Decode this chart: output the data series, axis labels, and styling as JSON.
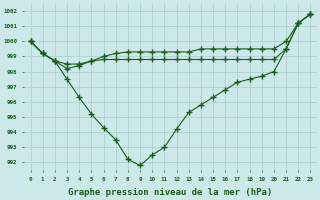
{
  "title": "",
  "xlabel": "Graphe pression niveau de la mer (hPa)",
  "ylim": [
    991.5,
    1002.5
  ],
  "xlim": [
    -0.5,
    23.5
  ],
  "yticks": [
    992,
    993,
    994,
    995,
    996,
    997,
    998,
    999,
    1000,
    1001,
    1002
  ],
  "xticks": [
    0,
    1,
    2,
    3,
    4,
    5,
    6,
    7,
    8,
    9,
    10,
    11,
    12,
    13,
    14,
    15,
    16,
    17,
    18,
    19,
    20,
    21,
    22,
    23
  ],
  "bg_color": "#cce8e8",
  "grid_color": "#aacccc",
  "line_color": "#1a5e1a",
  "line1": [
    1000.0,
    999.2,
    998.7,
    997.5,
    996.3,
    995.2,
    994.3,
    993.5,
    992.2,
    991.8,
    992.5,
    993.0,
    994.2,
    995.3,
    995.8,
    996.3,
    996.8,
    997.3,
    997.5,
    997.7,
    998.0,
    999.5,
    1001.2,
    1001.8
  ],
  "line2": [
    1000.0,
    999.2,
    998.7,
    998.5,
    998.5,
    998.7,
    998.8,
    998.8,
    998.8,
    998.8,
    998.8,
    998.8,
    998.8,
    998.8,
    998.8,
    998.8,
    998.8,
    998.8,
    998.8,
    998.8,
    998.8,
    999.5,
    1001.2,
    1001.8
  ],
  "line3": [
    1000.0,
    999.2,
    998.7,
    998.2,
    998.4,
    998.7,
    999.0,
    999.2,
    999.3,
    999.3,
    999.3,
    999.3,
    999.3,
    999.3,
    999.5,
    999.5,
    999.5,
    999.5,
    999.5,
    999.5,
    999.5,
    1000.0,
    1001.2,
    1001.8
  ],
  "fontsize_xlabel": 6.5,
  "marker": "+",
  "marker_size": 4.0,
  "linewidth": 0.8
}
